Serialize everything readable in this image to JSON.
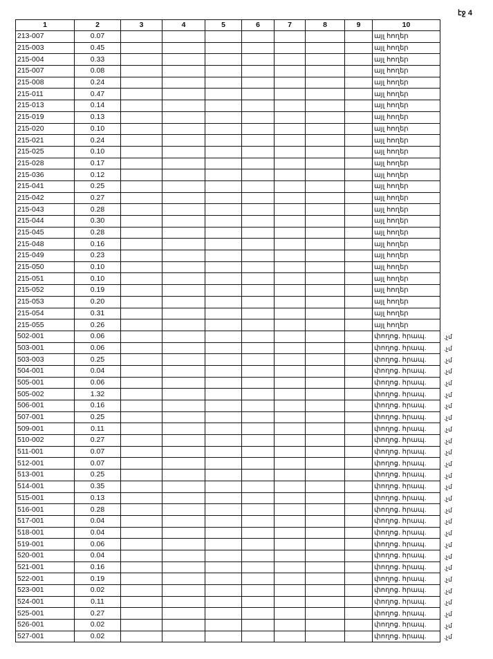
{
  "page_label": "էջ 4",
  "columns": [
    "1",
    "2",
    "3",
    "4",
    "5",
    "6",
    "7",
    "8",
    "9",
    "10"
  ],
  "rows": [
    [
      "213-007",
      "0.07",
      "այլ հողեր"
    ],
    [
      "215-003",
      "0.45",
      "այլ հողեր"
    ],
    [
      "215-004",
      "0.33",
      "այլ հողեր"
    ],
    [
      "215-007",
      "0.08",
      "այլ հողեր"
    ],
    [
      "215-008",
      "0.24",
      "այլ հողեր"
    ],
    [
      "215-011",
      "0.47",
      "այլ հողեր"
    ],
    [
      "215-013",
      "0.14",
      "այլ հողեր"
    ],
    [
      "215-019",
      "0.13",
      "այլ հողեր"
    ],
    [
      "215-020",
      "0.10",
      "այլ հողեր"
    ],
    [
      "215-021",
      "0.24",
      "այլ հողեր"
    ],
    [
      "215-025",
      "0.10",
      "այլ հողեր"
    ],
    [
      "215-028",
      "0.17",
      "այլ հողեր"
    ],
    [
      "215-036",
      "0.12",
      "այլ հողեր"
    ],
    [
      "215-041",
      "0.25",
      "այլ հողեր"
    ],
    [
      "215-042",
      "0.27",
      "այլ հողեր"
    ],
    [
      "215-043",
      "0.28",
      "այլ հողեր"
    ],
    [
      "215-044",
      "0.30",
      "այլ հողեր"
    ],
    [
      "215-045",
      "0.28",
      "այլ հողեր"
    ],
    [
      "215-048",
      "0.16",
      "այլ հողեր"
    ],
    [
      "215-049",
      "0.23",
      "այլ հողեր"
    ],
    [
      "215-050",
      "0.10",
      "այլ հողեր"
    ],
    [
      "215-051",
      "0.10",
      "այլ հողեր"
    ],
    [
      "215-052",
      "0.19",
      "այլ հողեր"
    ],
    [
      "215-053",
      "0.20",
      "այլ հողեր"
    ],
    [
      "215-054",
      "0.31",
      "այլ հողեր"
    ],
    [
      "215-055",
      "0.26",
      "այլ հողեր"
    ],
    [
      "502-001",
      "0.06",
      "փողոց. հրապ."
    ],
    [
      "503-001",
      "0.06",
      "փողոց. հրապ."
    ],
    [
      "503-003",
      "0.25",
      "փողոց. հրապ."
    ],
    [
      "504-001",
      "0.04",
      "փողոց. հրապ."
    ],
    [
      "505-001",
      "0.06",
      "փողոց. հրապ."
    ],
    [
      "505-002",
      "1.32",
      "փողոց. հրապ."
    ],
    [
      "506-001",
      "0.16",
      "փողոց. հրապ."
    ],
    [
      "507-001",
      "0.25",
      "փողոց. հրապ."
    ],
    [
      "509-001",
      "0.11",
      "փողոց. հրապ."
    ],
    [
      "510-002",
      "0.27",
      "փողոց. հրապ."
    ],
    [
      "511-001",
      "0.07",
      "փողոց. հրապ."
    ],
    [
      "512-001",
      "0.07",
      "փողոց. հրապ."
    ],
    [
      "513-001",
      "0.25",
      "փողոց. հրապ."
    ],
    [
      "514-001",
      "0.35",
      "փողոց. հրապ."
    ],
    [
      "515-001",
      "0.13",
      "փողոց. հրապ."
    ],
    [
      "516-001",
      "0.28",
      "փողոց. հրապ."
    ],
    [
      "517-001",
      "0.04",
      "փողոց. հրապ."
    ],
    [
      "518-001",
      "0.04",
      "փողոց. հրապ."
    ],
    [
      "519-001",
      "0.06",
      "փողոց. հրապ."
    ],
    [
      "520-001",
      "0.04",
      "փողոց. հրապ."
    ],
    [
      "521-001",
      "0.16",
      "փողոց. հրապ."
    ],
    [
      "522-001",
      "0.19",
      "փողոց. հրապ."
    ],
    [
      "523-001",
      "0.02",
      "փողոց. հրապ."
    ],
    [
      "524-001",
      "0.11",
      "փողոց. հրապ."
    ],
    [
      "525-001",
      "0.27",
      "փողոց. հրապ."
    ],
    [
      "526-001",
      "0.02",
      "փողոց. հրապ."
    ],
    [
      "527-001",
      "0.02",
      "փողոց. հրապ."
    ]
  ],
  "margin_note": ".չմ",
  "margin_note_from_row": 26
}
